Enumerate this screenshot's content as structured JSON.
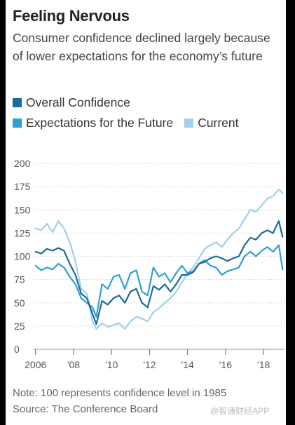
{
  "title": "Feeling Nervous",
  "subtitle": "Consumer confidence declined largely because of lower expectations for the economy’s future",
  "note": "Note: 100 represents confidence level in 1985",
  "source": "Source: The Conference Board",
  "watermark": "@智通财经APP",
  "chart_data": {
    "type": "line",
    "title": "Feeling Nervous",
    "ylim": [
      0,
      200
    ],
    "xlim": [
      2005.9,
      2019.1
    ],
    "yticks": [
      0,
      25,
      50,
      75,
      100,
      125,
      150,
      175,
      200
    ],
    "xticks": [
      {
        "value": 2006,
        "label": "2006"
      },
      {
        "value": 2008,
        "label": "'08"
      },
      {
        "value": 2010,
        "label": "'10"
      },
      {
        "value": 2012,
        "label": "'12"
      },
      {
        "value": 2014,
        "label": "'14"
      },
      {
        "value": 2016,
        "label": "'16"
      },
      {
        "value": 2018,
        "label": "'18"
      }
    ],
    "grid": true,
    "legend_position": "top-left",
    "series": [
      {
        "name": "Overall Confidence",
        "color": "#1a6b96",
        "x": [
          2006.0,
          2006.3,
          2006.6,
          2006.9,
          2007.2,
          2007.5,
          2007.8,
          2008.1,
          2008.4,
          2008.7,
          2009.0,
          2009.2,
          2009.5,
          2009.8,
          2010.1,
          2010.4,
          2010.7,
          2011.0,
          2011.3,
          2011.6,
          2011.9,
          2012.2,
          2012.5,
          2012.8,
          2013.1,
          2013.4,
          2013.7,
          2014.0,
          2014.3,
          2014.6,
          2014.9,
          2015.2,
          2015.5,
          2015.8,
          2016.1,
          2016.4,
          2016.7,
          2017.0,
          2017.3,
          2017.6,
          2017.9,
          2018.2,
          2018.5,
          2018.8,
          2019.0
        ],
        "y": [
          105,
          103,
          108,
          106,
          109,
          106,
          92,
          80,
          60,
          55,
          38,
          27,
          52,
          48,
          55,
          58,
          50,
          62,
          65,
          50,
          45,
          68,
          64,
          70,
          62,
          70,
          80,
          80,
          83,
          92,
          94,
          98,
          100,
          98,
          95,
          98,
          100,
          112,
          120,
          118,
          125,
          128,
          125,
          138,
          121
        ]
      },
      {
        "name": "Expectations for the Future",
        "color": "#2e9fd6",
        "x": [
          2006.0,
          2006.3,
          2006.6,
          2006.9,
          2007.2,
          2007.5,
          2007.8,
          2008.1,
          2008.4,
          2008.7,
          2009.0,
          2009.2,
          2009.5,
          2009.8,
          2010.1,
          2010.4,
          2010.7,
          2011.0,
          2011.3,
          2011.6,
          2011.9,
          2012.2,
          2012.5,
          2012.8,
          2013.1,
          2013.4,
          2013.7,
          2014.0,
          2014.3,
          2014.6,
          2014.9,
          2015.2,
          2015.5,
          2015.8,
          2016.1,
          2016.4,
          2016.7,
          2017.0,
          2017.3,
          2017.6,
          2017.9,
          2018.2,
          2018.5,
          2018.8,
          2019.0
        ],
        "y": [
          90,
          85,
          88,
          86,
          92,
          88,
          78,
          70,
          55,
          50,
          45,
          35,
          70,
          65,
          78,
          80,
          65,
          82,
          85,
          62,
          58,
          88,
          78,
          82,
          72,
          82,
          90,
          82,
          84,
          92,
          96,
          90,
          88,
          80,
          84,
          86,
          88,
          100,
          105,
          100,
          106,
          110,
          105,
          112,
          86
        ]
      },
      {
        "name": "Current",
        "color": "#9fd0ee",
        "x": [
          2006.0,
          2006.3,
          2006.6,
          2006.9,
          2007.2,
          2007.5,
          2007.8,
          2008.1,
          2008.4,
          2008.7,
          2009.0,
          2009.2,
          2009.5,
          2009.8,
          2010.1,
          2010.4,
          2010.7,
          2011.0,
          2011.3,
          2011.6,
          2011.9,
          2012.2,
          2012.5,
          2012.8,
          2013.1,
          2013.4,
          2013.7,
          2014.0,
          2014.3,
          2014.6,
          2014.9,
          2015.2,
          2015.5,
          2015.8,
          2016.1,
          2016.4,
          2016.7,
          2017.0,
          2017.3,
          2017.6,
          2017.9,
          2018.2,
          2018.5,
          2018.8,
          2019.0
        ],
        "y": [
          130,
          128,
          135,
          126,
          138,
          130,
          115,
          95,
          65,
          60,
          30,
          22,
          28,
          24,
          26,
          28,
          22,
          30,
          35,
          33,
          30,
          40,
          44,
          50,
          55,
          62,
          72,
          82,
          88,
          98,
          108,
          112,
          115,
          110,
          118,
          125,
          130,
          140,
          150,
          148,
          155,
          162,
          165,
          172,
          168
        ]
      }
    ]
  }
}
